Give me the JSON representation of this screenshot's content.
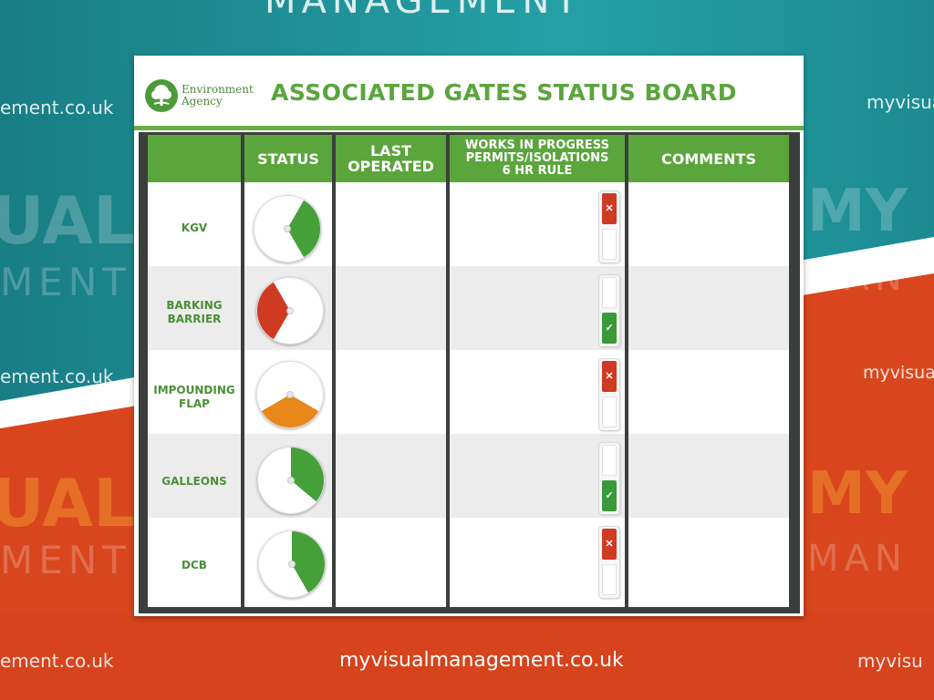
{
  "background": {
    "top_text": "MANAGEMENT",
    "left_urls": [
      "ement.co.uk",
      "ement.co.uk",
      "ement.co.uk"
    ],
    "right_urls": [
      "myvisual",
      "myvisual",
      "myvisu"
    ],
    "bottom_url": "myvisualmanagement.co.uk",
    "faint_words": [
      "UAL",
      "MENT",
      "UAL",
      "MENT",
      "MY",
      "MAN",
      "MY",
      "MAN"
    ]
  },
  "board": {
    "logo_line1": "Environment",
    "logo_line2": "Agency",
    "title": "ASSOCIATED GATES STATUS BOARD",
    "columns": {
      "status": "STATUS",
      "last_operated": [
        "LAST",
        "OPERATED"
      ],
      "works": [
        "WORKS IN PROGRESS",
        "PERMITS/ISOLATIONS",
        "6 HR RULE"
      ],
      "comments": "COMMENTS"
    },
    "rows": [
      {
        "label": [
          "KGV"
        ],
        "dial_color": "#45a03a",
        "dial_start": 30,
        "dial_end": 150,
        "toggle": "red"
      },
      {
        "label": [
          "BARKING",
          "BARRIER"
        ],
        "dial_color": "#cf3a23",
        "dial_start": 210,
        "dial_end": 330,
        "toggle": "green"
      },
      {
        "label": [
          "IMPOUNDING",
          "FLAP"
        ],
        "dial_color": "#e8871a",
        "dial_start": 120,
        "dial_end": 240,
        "toggle": "red"
      },
      {
        "label": [
          "GALLEONS"
        ],
        "dial_color": "#45a03a",
        "dial_start": 0,
        "dial_end": 130,
        "toggle": "green"
      },
      {
        "label": [
          "DCB"
        ],
        "dial_color": "#45a03a",
        "dial_start": 0,
        "dial_end": 150,
        "toggle": "red"
      }
    ]
  },
  "icons": {
    "red_lamp": "crossed-tools-icon",
    "green_lamp": "check-icon"
  }
}
